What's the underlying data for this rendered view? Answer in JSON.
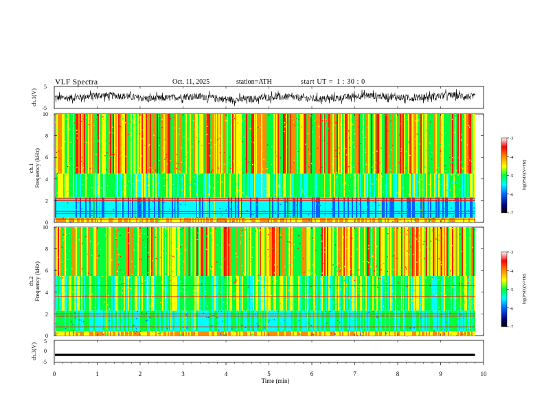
{
  "header": {
    "title": "VLF  Spectra",
    "date": "Oct. 11, 2025",
    "station": "station=ATH",
    "start_label": "start  UT  =",
    "start_time": "1 : 30 : 0"
  },
  "chart_data": [
    {
      "type": "line",
      "panel": "ch1-waveform",
      "ylabel": "ch.1(V)",
      "ylim": [
        -5,
        5
      ],
      "yticks": [
        "5",
        "-5"
      ],
      "xlim": [
        0,
        10
      ],
      "description_of_values": "broadband noise trace centered near 0 V, fluctuating roughly between -3 and +3 V over 0 to 9.8 min",
      "x_end": 9.8
    },
    {
      "type": "heatmap",
      "panel": "ch1-spectrogram",
      "ylabel": "Frequency  (kHz)",
      "channel_label": "ch.1",
      "ylim": [
        0,
        10
      ],
      "yticks": [
        "0",
        "2",
        "4",
        "6",
        "8",
        "10"
      ],
      "xlim": [
        0,
        10
      ],
      "x_end": 9.8,
      "colorbar": {
        "label": "log(PSD)(V²/Hz)",
        "range": [
          -7,
          -3
        ],
        "ticks": [
          "-3",
          "-4",
          "-5",
          "-6",
          "-7"
        ]
      }
    },
    {
      "type": "heatmap",
      "panel": "ch2-spectrogram",
      "ylabel": "Frequency  (kHz)",
      "channel_label": "ch.2",
      "ylim": [
        0,
        10
      ],
      "yticks": [
        "0",
        "2",
        "4",
        "6",
        "8",
        "10"
      ],
      "xlim": [
        0,
        10
      ],
      "x_end": 9.8,
      "colorbar": {
        "label": "log(PSD)(V²/Hz)",
        "range": [
          -7,
          -3
        ],
        "ticks": [
          "-3",
          "-4",
          "-5",
          "-6",
          "-7"
        ]
      }
    },
    {
      "type": "line",
      "panel": "ch3-waveform",
      "ylabel": "ch.3(V)",
      "ylim": [
        -5,
        5
      ],
      "yticks": [
        "5",
        "0",
        "-5"
      ],
      "xlim": [
        0,
        10
      ],
      "constant_value": -2,
      "x_end": 9.8
    }
  ],
  "x_axis": {
    "label": "Time  (min)",
    "ticks": [
      "0",
      "1",
      "2",
      "3",
      "4",
      "5",
      "6",
      "7",
      "8",
      "9",
      "10"
    ],
    "range": [
      0,
      10
    ]
  },
  "colors": {
    "red": "#ff1a00",
    "orange": "#ff8c00",
    "yellow": "#ffff00",
    "green": "#00ff40",
    "cyan": "#00ffff",
    "blue": "#0064ff",
    "black": "#000000"
  }
}
